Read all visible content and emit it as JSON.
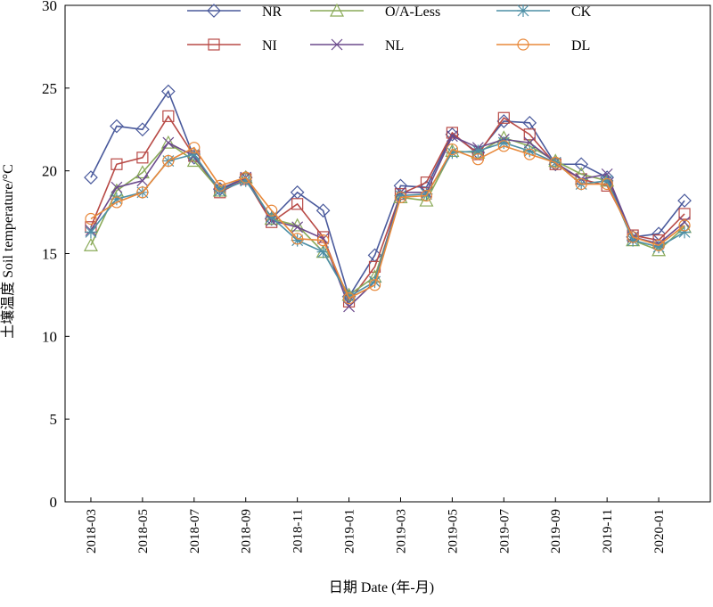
{
  "chart_data": {
    "type": "line",
    "xlabel": "日期 Date (年-月)",
    "ylabel": "土壤温度 Soil temperature/°C",
    "ylim": [
      0,
      30
    ],
    "yticks": [
      0,
      5,
      10,
      15,
      20,
      25,
      30
    ],
    "xlim": [
      "2018-02",
      "2020-03"
    ],
    "xticks": [
      "2018-03",
      "2018-05",
      "2018-07",
      "2018-09",
      "2018-11",
      "2019-01",
      "2019-03",
      "2019-05",
      "2019-07",
      "2019-09",
      "2019-11",
      "2020-01"
    ],
    "grid": false,
    "legend_position": "top",
    "x": [
      "2018-03",
      "2018-04",
      "2018-05",
      "2018-06",
      "2018-07",
      "2018-08",
      "2018-09",
      "2018-10",
      "2018-11",
      "2018-12",
      "2019-01",
      "2019-02",
      "2019-03",
      "2019-04",
      "2019-05",
      "2019-06",
      "2019-07",
      "2019-08",
      "2019-09",
      "2019-10",
      "2019-11",
      "2019-12",
      "2020-01",
      "2020-02"
    ],
    "series": [
      {
        "name": "NR",
        "marker": "diamond",
        "color": "#4a5a9c",
        "values": [
          19.6,
          22.7,
          22.5,
          24.8,
          20.8,
          18.9,
          19.6,
          17.1,
          18.7,
          17.6,
          12.4,
          14.9,
          19.1,
          19.0,
          22.2,
          21.1,
          23.0,
          22.9,
          20.4,
          20.4,
          19.6,
          16.0,
          16.2,
          18.2
        ]
      },
      {
        "name": "NI",
        "marker": "square",
        "color": "#b84a46",
        "values": [
          16.6,
          20.4,
          20.8,
          23.3,
          20.9,
          18.7,
          19.5,
          16.9,
          18.0,
          16.0,
          12.1,
          14.2,
          18.6,
          19.3,
          22.3,
          21.0,
          23.2,
          22.2,
          20.4,
          19.5,
          19.1,
          16.1,
          15.8,
          17.4
        ]
      },
      {
        "name": "O/A-Less",
        "marker": "triangle",
        "color": "#8aaa58",
        "values": [
          15.5,
          18.8,
          19.9,
          21.7,
          20.6,
          18.8,
          19.6,
          17.1,
          16.7,
          15.1,
          12.5,
          13.6,
          18.4,
          18.2,
          21.2,
          21.1,
          22.0,
          21.5,
          20.6,
          19.8,
          19.4,
          15.8,
          15.2,
          16.6
        ]
      },
      {
        "name": "NL",
        "marker": "x",
        "color": "#6b4a8c",
        "values": [
          16.4,
          19.0,
          19.4,
          21.7,
          20.9,
          18.8,
          19.6,
          17.0,
          16.6,
          15.9,
          11.8,
          13.3,
          18.7,
          18.7,
          22.1,
          21.4,
          21.9,
          21.7,
          20.5,
          19.5,
          19.8,
          16.0,
          15.6,
          16.9
        ]
      },
      {
        "name": "CK",
        "marker": "asterisk",
        "color": "#4d8fa6",
        "values": [
          16.3,
          18.3,
          18.7,
          20.6,
          21.0,
          18.8,
          19.4,
          17.2,
          15.8,
          15.1,
          12.4,
          13.3,
          18.5,
          18.6,
          21.1,
          21.2,
          21.7,
          21.2,
          20.5,
          19.2,
          19.4,
          15.8,
          15.4,
          16.3
        ]
      },
      {
        "name": "DL",
        "marker": "circle",
        "color": "#e8883a",
        "values": [
          17.1,
          18.1,
          18.7,
          20.6,
          21.4,
          19.1,
          19.6,
          17.6,
          15.9,
          15.8,
          12.3,
          13.1,
          18.4,
          18.5,
          21.3,
          20.7,
          21.5,
          21.0,
          20.5,
          19.2,
          19.2,
          16.0,
          15.5,
          16.7
        ]
      }
    ]
  }
}
